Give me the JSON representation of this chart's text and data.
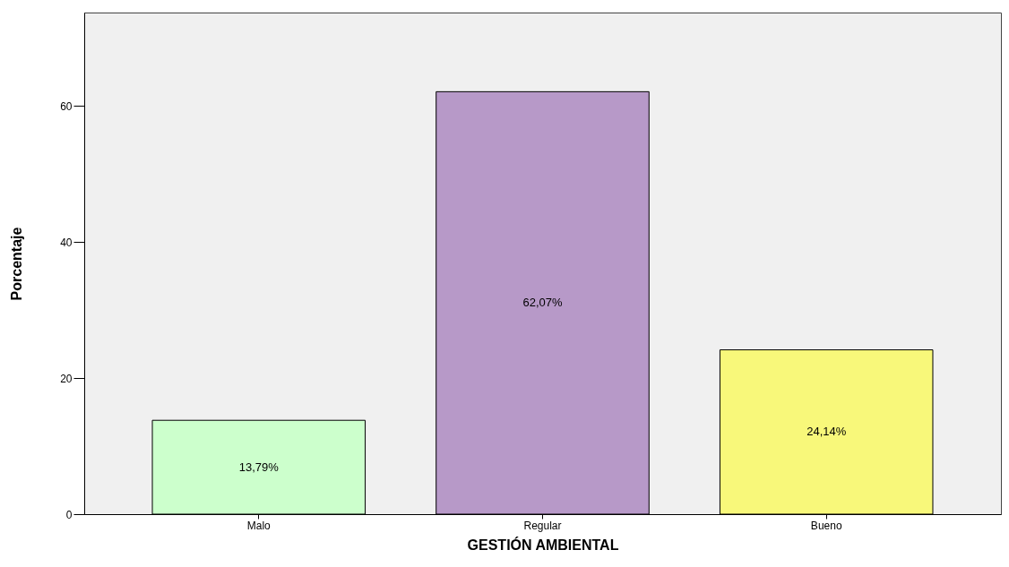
{
  "chart_data": {
    "type": "bar",
    "xlabel": "GESTIÓN AMBIENTAL",
    "ylabel": "Porcentaje",
    "categories": [
      "Malo",
      "Regular",
      "Bueno"
    ],
    "values": [
      13.79,
      62.07,
      24.14
    ],
    "colors": [
      "#ccffcc",
      "#b799c8",
      "#f8f87a"
    ],
    "value_labels": [
      "13,79%",
      "62,07%",
      "24,14%"
    ],
    "ylim": [
      0,
      73.7
    ],
    "yticks": [
      0,
      20,
      40,
      60
    ],
    "grid": false
  }
}
